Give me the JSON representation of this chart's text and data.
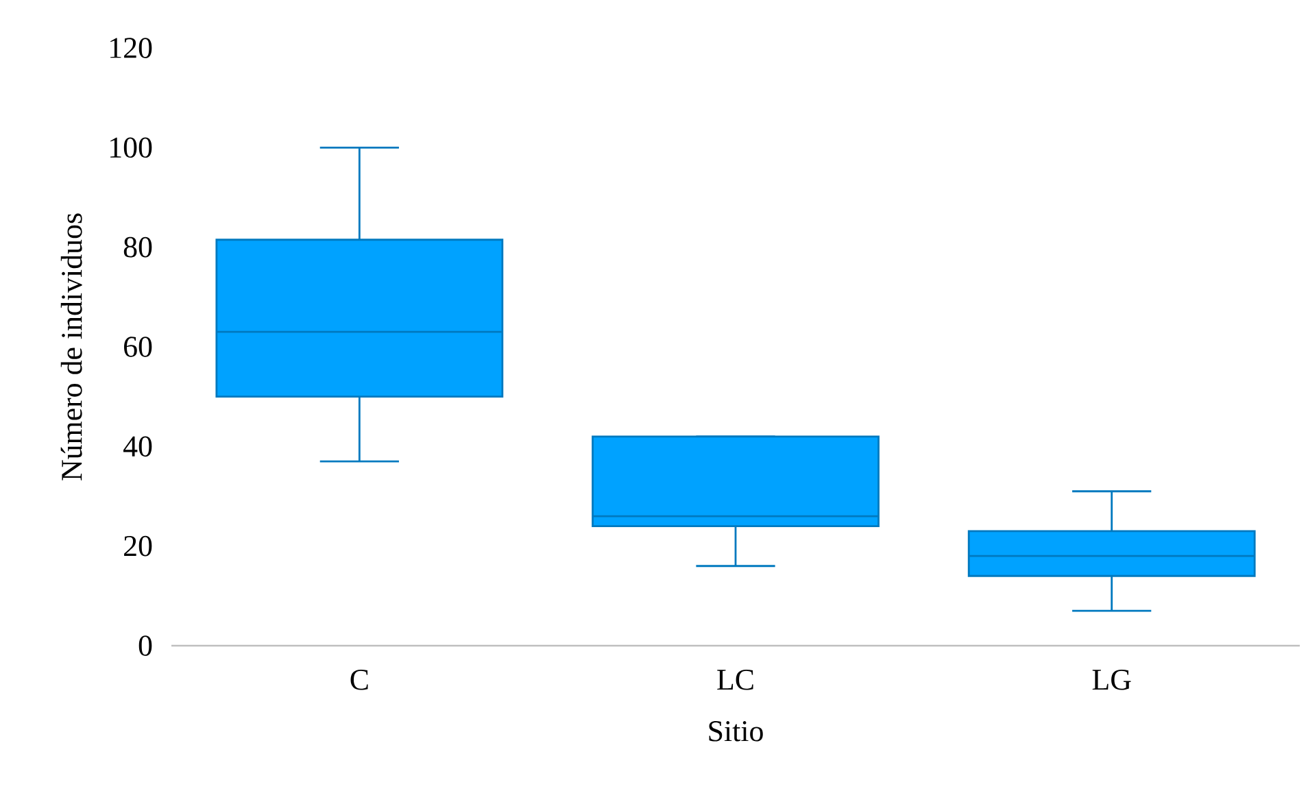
{
  "chart_data": {
    "type": "box",
    "xlabel": "Sitio",
    "ylabel": "Número de individuos",
    "categories": [
      "C",
      "LC",
      "LG"
    ],
    "color": "#00a2ff",
    "boxes": [
      {
        "low": 37,
        "q1": 50,
        "median": 63,
        "q3": 81.5,
        "high": 100
      },
      {
        "low": 16,
        "q1": 24,
        "median": 26,
        "q3": 42,
        "high": 42
      },
      {
        "low": 7,
        "q1": 14,
        "median": 18,
        "q3": 23,
        "high": 31
      }
    ],
    "ylim": [
      0,
      120
    ],
    "yticks": [
      0,
      20,
      40,
      60,
      80,
      100,
      120
    ]
  }
}
